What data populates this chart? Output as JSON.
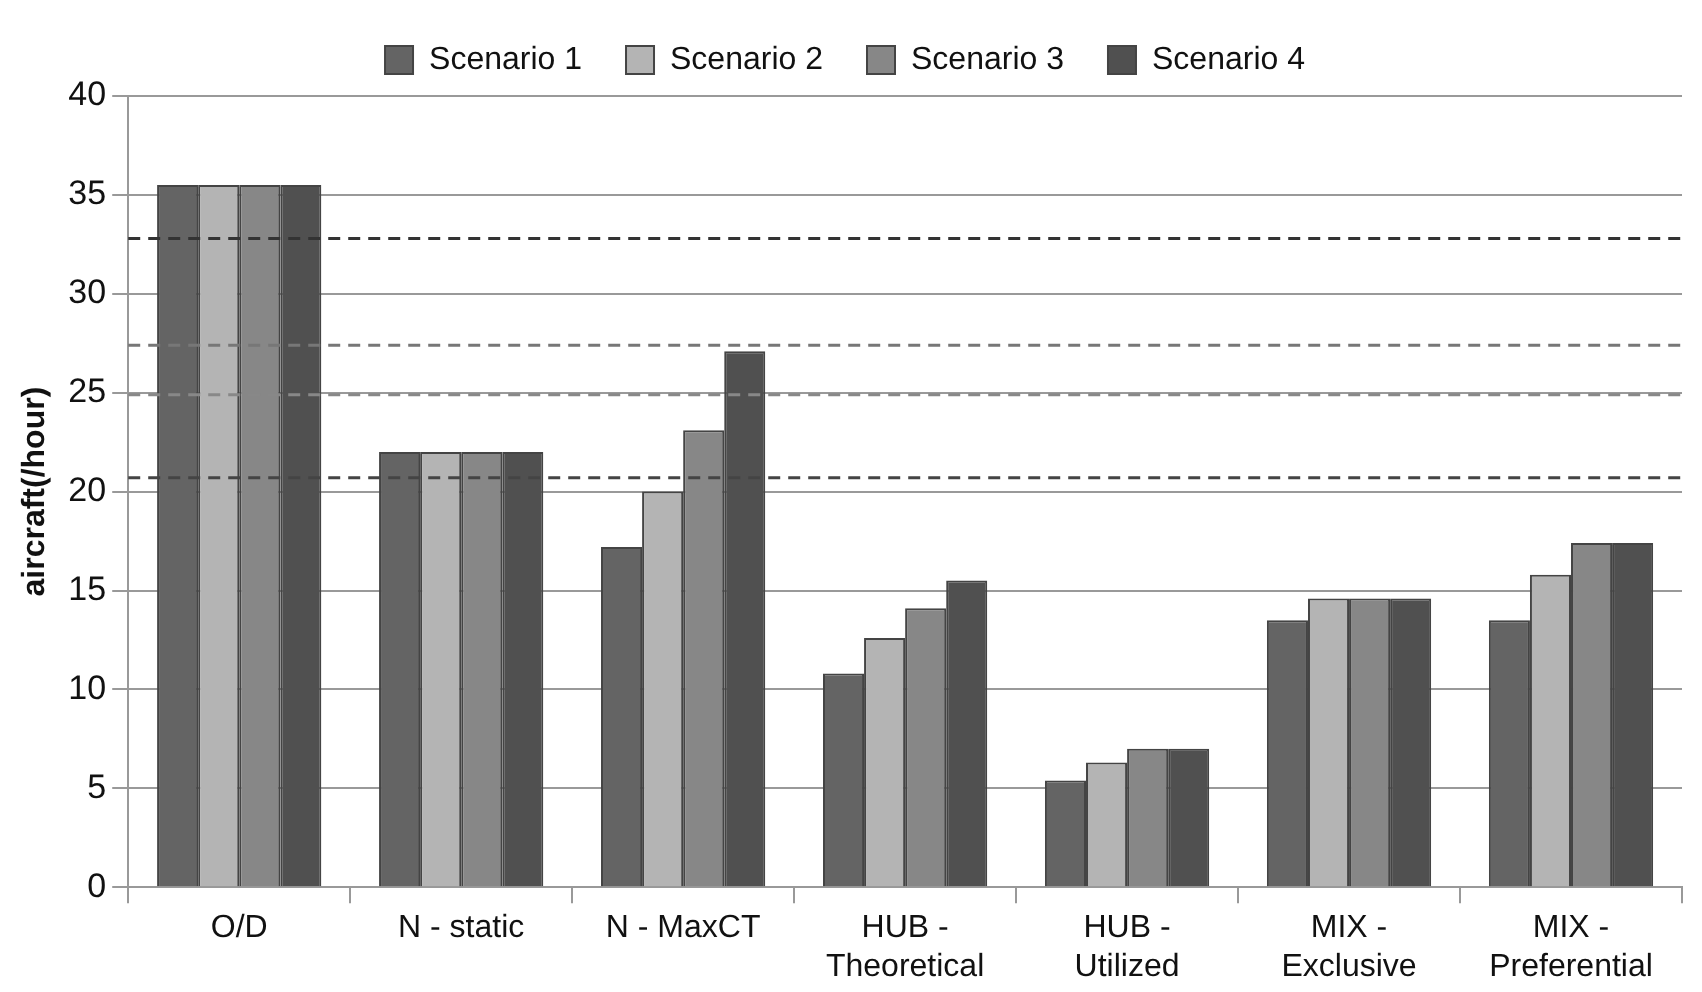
{
  "chart_data": {
    "type": "bar",
    "ylabel": "aircraft(/hour)",
    "categories": [
      "O/D",
      "N - static",
      "N - MaxCT",
      "HUB - Theoretical",
      "HUB - Utilized",
      "MIX - Exclusive",
      "MIX - Preferential"
    ],
    "series": [
      {
        "name": "Scenario 1",
        "color": "#646464",
        "values": [
          35.5,
          22,
          17.2,
          10.8,
          5.4,
          13.5,
          13.5
        ]
      },
      {
        "name": "Scenario 2",
        "color": "#b4b4b4",
        "values": [
          35.5,
          22,
          20,
          12.6,
          6.3,
          14.6,
          15.8
        ]
      },
      {
        "name": "Scenario 3",
        "color": "#878787",
        "values": [
          35.5,
          22,
          23.1,
          14.1,
          7.0,
          14.6,
          17.4
        ]
      },
      {
        "name": "Scenario 4",
        "color": "#505050",
        "values": [
          35.5,
          22,
          27.1,
          15.5,
          7.0,
          14.6,
          17.4
        ]
      }
    ],
    "ylim": [
      0,
      40
    ],
    "yticks": [
      0,
      5,
      10,
      15,
      20,
      25,
      30,
      35,
      40
    ],
    "ref_lines": [
      {
        "axis": "y",
        "value": 32.8,
        "color": "#333333",
        "line_style": "dashed"
      },
      {
        "axis": "y",
        "value": 27.4,
        "color": "#777777",
        "line_style": "dashed"
      },
      {
        "axis": "y",
        "value": 24.9,
        "color": "#888888",
        "line_style": "dashed"
      },
      {
        "axis": "y",
        "value": 20.7,
        "color": "#444444",
        "line_style": "dashed"
      }
    ],
    "grid": "y",
    "legend": "top"
  }
}
